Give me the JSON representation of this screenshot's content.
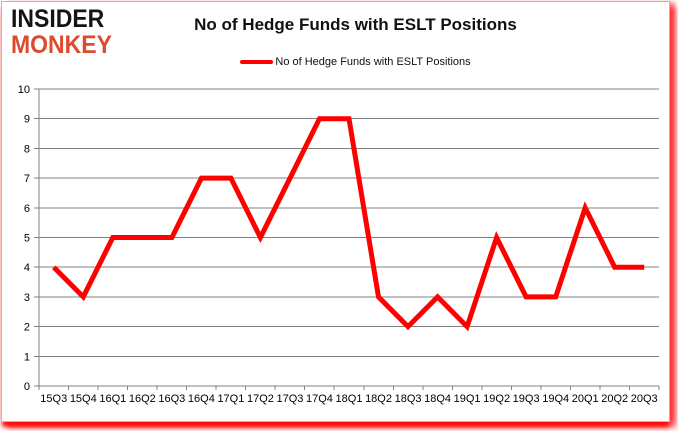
{
  "logo": {
    "line1": "INSIDER",
    "line2": "MONKEY"
  },
  "header": {
    "title": "No of Hedge Funds with ESLT Positions"
  },
  "legend": {
    "label": "No of Hedge Funds with ESLT Positions",
    "line_color": "#ff0000"
  },
  "colors": {
    "series_red": "#ff0000",
    "logo_red": "#dd4a2e",
    "grid_gray": "#808080",
    "text_black": "#000000",
    "card_border": "#b9b9b9",
    "shadow_red": "#ff0000"
  },
  "chart_data": {
    "type": "line",
    "title": "No of Hedge Funds with ESLT Positions",
    "categories": [
      "15Q3",
      "15Q4",
      "16Q1",
      "16Q2",
      "16Q3",
      "16Q4",
      "17Q1",
      "17Q2",
      "17Q3",
      "17Q4",
      "18Q1",
      "18Q2",
      "18Q3",
      "18Q4",
      "19Q1",
      "19Q2",
      "19Q3",
      "19Q4",
      "20Q1",
      "20Q2",
      "20Q3"
    ],
    "series": [
      {
        "name": "No of Hedge Funds with ESLT Positions",
        "color": "#ff0000",
        "values": [
          4,
          3,
          5,
          5,
          5,
          7,
          7,
          5,
          7,
          9,
          9,
          3,
          2,
          3,
          2,
          5,
          3,
          3,
          6,
          4,
          4
        ]
      }
    ],
    "xlabel": "",
    "ylabel": "",
    "ylim": [
      0,
      10
    ],
    "ytick_step": 1,
    "grid": true,
    "legend_position": "top-center",
    "axis_color": "#808080"
  }
}
